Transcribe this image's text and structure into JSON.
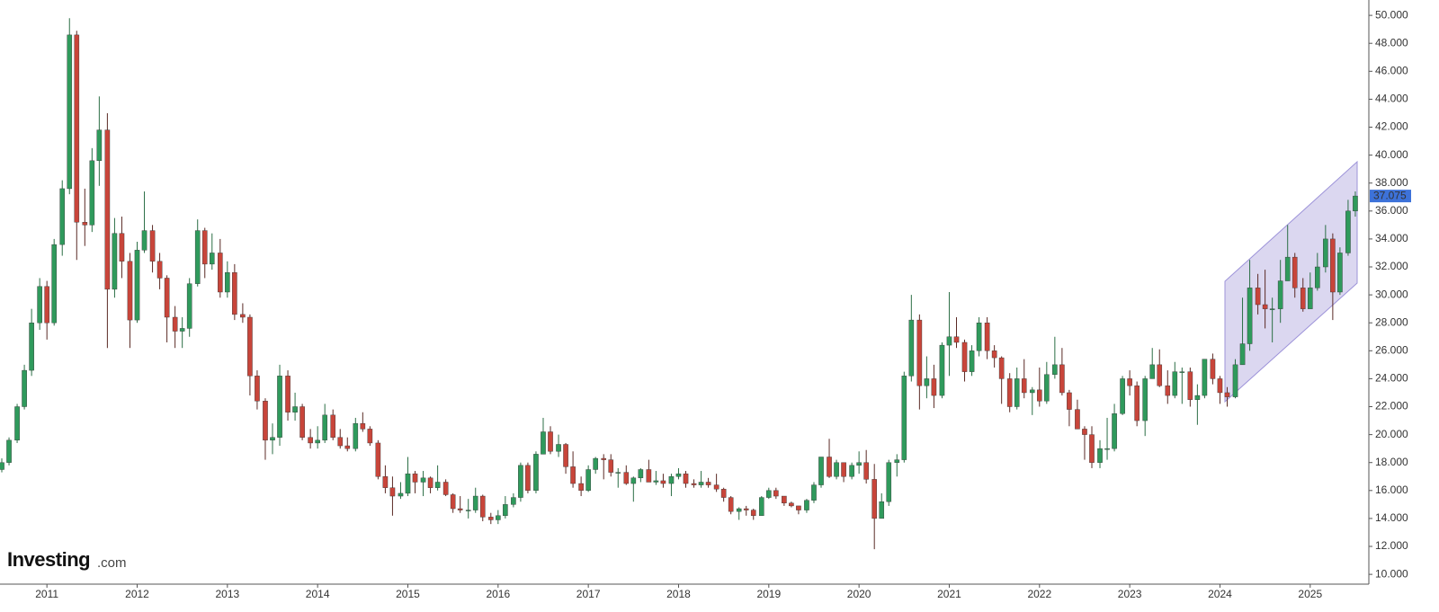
{
  "chart_data": {
    "type": "candlestick",
    "logo": {
      "brand": "Investing",
      "suffix": ".com"
    },
    "up_color": "#2f9a5c",
    "down_color": "#c8453a",
    "last_price": 37.075,
    "xlim": [
      2010.48,
      2025.65
    ],
    "xticks": [
      2011,
      2012,
      2013,
      2014,
      2015,
      2016,
      2017,
      2018,
      2019,
      2020,
      2021,
      2022,
      2023,
      2024,
      2025
    ],
    "ylim": [
      9.3,
      51.1
    ],
    "yticks": [
      {
        "value": 10,
        "label": "10.000"
      },
      {
        "value": 12,
        "label": "12.000"
      },
      {
        "value": 14,
        "label": "14.000"
      },
      {
        "value": 16,
        "label": "16.000"
      },
      {
        "value": 18,
        "label": "18.000"
      },
      {
        "value": 20,
        "label": "20.000"
      },
      {
        "value": 22,
        "label": "22.000"
      },
      {
        "value": 24,
        "label": "24.000"
      },
      {
        "value": 26,
        "label": "26.000"
      },
      {
        "value": 28,
        "label": "28.000"
      },
      {
        "value": 30,
        "label": "30.000"
      },
      {
        "value": 32,
        "label": "32.000"
      },
      {
        "value": 34,
        "label": "34.000"
      },
      {
        "value": 36,
        "label": "36.000"
      },
      {
        "value": 38,
        "label": "38.000"
      },
      {
        "value": 40,
        "label": "40.000"
      },
      {
        "value": 42,
        "label": "42.000"
      },
      {
        "value": 44,
        "label": "44.000"
      },
      {
        "value": 46,
        "label": "46.000"
      },
      {
        "value": 48,
        "label": "48.000"
      },
      {
        "value": 50,
        "label": "50.000"
      }
    ],
    "x": [
      2010.5,
      2010.58,
      2010.67,
      2010.75,
      2010.83,
      2010.92,
      2011,
      2011.08,
      2011.17,
      2011.25,
      2011.33,
      2011.42,
      2011.5,
      2011.58,
      2011.67,
      2011.75,
      2011.83,
      2011.92,
      2012,
      2012.08,
      2012.17,
      2012.25,
      2012.33,
      2012.42,
      2012.5,
      2012.58,
      2012.67,
      2012.75,
      2012.83,
      2012.92,
      2013,
      2013.08,
      2013.17,
      2013.25,
      2013.33,
      2013.42,
      2013.5,
      2013.58,
      2013.67,
      2013.75,
      2013.83,
      2013.92,
      2014,
      2014.08,
      2014.17,
      2014.25,
      2014.33,
      2014.42,
      2014.5,
      2014.58,
      2014.67,
      2014.75,
      2014.83,
      2014.92,
      2015,
      2015.08,
      2015.17,
      2015.25,
      2015.33,
      2015.42,
      2015.5,
      2015.58,
      2015.67,
      2015.75,
      2015.83,
      2015.92,
      2016,
      2016.08,
      2016.17,
      2016.25,
      2016.33,
      2016.42,
      2016.5,
      2016.58,
      2016.67,
      2016.75,
      2016.83,
      2016.92,
      2017,
      2017.08,
      2017.17,
      2017.25,
      2017.33,
      2017.42,
      2017.5,
      2017.58,
      2017.67,
      2017.75,
      2017.83,
      2017.92,
      2018,
      2018.08,
      2018.17,
      2018.25,
      2018.33,
      2018.42,
      2018.5,
      2018.58,
      2018.67,
      2018.75,
      2018.83,
      2018.92,
      2019,
      2019.08,
      2019.17,
      2019.25,
      2019.33,
      2019.42,
      2019.5,
      2019.58,
      2019.67,
      2019.75,
      2019.83,
      2019.92,
      2020,
      2020.08,
      2020.17,
      2020.25,
      2020.33,
      2020.42,
      2020.5,
      2020.58,
      2020.67,
      2020.75,
      2020.83,
      2020.92,
      2021,
      2021.08,
      2021.17,
      2021.25,
      2021.33,
      2021.42,
      2021.5,
      2021.58,
      2021.67,
      2021.75,
      2021.83,
      2021.92,
      2022,
      2022.08,
      2022.17,
      2022.25,
      2022.33,
      2022.42,
      2022.5,
      2022.58,
      2022.67,
      2022.75,
      2022.83,
      2022.92,
      2023,
      2023.08,
      2023.17,
      2023.25,
      2023.33,
      2023.42,
      2023.5,
      2023.58,
      2023.67,
      2023.75,
      2023.83,
      2023.92,
      2024,
      2024.08,
      2024.17,
      2024.25,
      2024.33,
      2024.42,
      2024.5,
      2024.58,
      2024.67,
      2024.75,
      2024.83,
      2024.92,
      2025,
      2025.08,
      2025.17,
      2025.25,
      2025.33,
      2025.42,
      2025.5
    ],
    "candles": [
      [
        17.5,
        18.3,
        17.3,
        18.0
      ],
      [
        18.0,
        19.8,
        17.8,
        19.6
      ],
      [
        19.6,
        22.2,
        19.4,
        22.0
      ],
      [
        22.0,
        25.0,
        21.8,
        24.6
      ],
      [
        24.6,
        29.0,
        24.2,
        28.0
      ],
      [
        28.0,
        31.2,
        27.5,
        30.6
      ],
      [
        30.6,
        31.0,
        26.8,
        28.0
      ],
      [
        28.0,
        34.0,
        27.8,
        33.6
      ],
      [
        33.6,
        38.2,
        32.8,
        37.6
      ],
      [
        37.6,
        49.8,
        37.2,
        48.6
      ],
      [
        48.6,
        48.9,
        32.5,
        35.2
      ],
      [
        35.2,
        37.6,
        33.5,
        35.0
      ],
      [
        35.0,
        40.5,
        34.5,
        39.6
      ],
      [
        39.6,
        44.2,
        37.8,
        41.8
      ],
      [
        41.8,
        43.0,
        26.2,
        30.4
      ],
      [
        30.4,
        35.5,
        29.8,
        34.4
      ],
      [
        34.4,
        35.6,
        31.2,
        32.4
      ],
      [
        32.4,
        33.0,
        26.2,
        28.2
      ],
      [
        28.2,
        33.8,
        28.0,
        33.2
      ],
      [
        33.2,
        37.4,
        33.0,
        34.6
      ],
      [
        34.6,
        35.0,
        31.6,
        32.4
      ],
      [
        32.4,
        33.0,
        30.4,
        31.2
      ],
      [
        31.2,
        31.4,
        26.6,
        28.4
      ],
      [
        28.4,
        29.2,
        26.2,
        27.4
      ],
      [
        27.4,
        28.4,
        26.2,
        27.6
      ],
      [
        27.6,
        31.2,
        27.0,
        30.8
      ],
      [
        30.8,
        35.4,
        30.6,
        34.6
      ],
      [
        34.6,
        34.8,
        31.2,
        32.2
      ],
      [
        32.2,
        34.4,
        31.8,
        33.0
      ],
      [
        33.0,
        34.0,
        29.8,
        30.2
      ],
      [
        30.2,
        32.4,
        29.8,
        31.6
      ],
      [
        31.6,
        32.2,
        28.2,
        28.6
      ],
      [
        28.6,
        29.4,
        28.0,
        28.4
      ],
      [
        28.4,
        28.6,
        22.8,
        24.2
      ],
      [
        24.2,
        24.6,
        21.8,
        22.4
      ],
      [
        22.4,
        22.6,
        18.2,
        19.6
      ],
      [
        19.6,
        20.8,
        18.6,
        19.8
      ],
      [
        19.8,
        25.0,
        19.2,
        24.2
      ],
      [
        24.2,
        24.6,
        21.0,
        21.6
      ],
      [
        21.6,
        23.0,
        21.0,
        22.0
      ],
      [
        22.0,
        22.2,
        19.6,
        19.8
      ],
      [
        19.8,
        20.4,
        19.0,
        19.4
      ],
      [
        19.4,
        20.6,
        19.0,
        19.6
      ],
      [
        19.6,
        22.2,
        19.4,
        21.4
      ],
      [
        21.4,
        21.8,
        19.6,
        19.8
      ],
      [
        19.8,
        20.4,
        19.0,
        19.2
      ],
      [
        19.2,
        19.8,
        18.8,
        19.0
      ],
      [
        19.0,
        21.2,
        18.8,
        20.8
      ],
      [
        20.8,
        21.6,
        20.2,
        20.4
      ],
      [
        20.4,
        20.6,
        19.2,
        19.4
      ],
      [
        19.4,
        19.6,
        16.8,
        17.0
      ],
      [
        17.0,
        17.8,
        15.8,
        16.2
      ],
      [
        16.2,
        17.0,
        14.2,
        15.6
      ],
      [
        15.6,
        16.6,
        15.4,
        15.8
      ],
      [
        15.8,
        18.4,
        15.6,
        17.2
      ],
      [
        17.2,
        17.4,
        15.8,
        16.6
      ],
      [
        16.6,
        17.4,
        15.6,
        16.9
      ],
      [
        16.9,
        17.0,
        15.8,
        16.2
      ],
      [
        16.2,
        17.8,
        16.0,
        16.6
      ],
      [
        16.6,
        16.8,
        15.6,
        15.7
      ],
      [
        15.7,
        15.8,
        14.4,
        14.7
      ],
      [
        14.7,
        15.6,
        14.4,
        14.6
      ],
      [
        14.6,
        15.4,
        14.0,
        14.6
      ],
      [
        14.6,
        16.2,
        14.4,
        15.6
      ],
      [
        15.6,
        15.7,
        13.8,
        14.1
      ],
      [
        14.1,
        14.4,
        13.6,
        13.9
      ],
      [
        13.9,
        14.6,
        13.6,
        14.2
      ],
      [
        14.2,
        15.6,
        14.0,
        15.0
      ],
      [
        15.0,
        15.8,
        14.8,
        15.5
      ],
      [
        15.5,
        18.0,
        15.2,
        17.8
      ],
      [
        17.8,
        18.0,
        15.8,
        16.0
      ],
      [
        16.0,
        18.8,
        15.8,
        18.6
      ],
      [
        18.6,
        21.2,
        18.6,
        20.2
      ],
      [
        20.2,
        20.6,
        18.6,
        18.8
      ],
      [
        18.8,
        20.0,
        18.4,
        19.3
      ],
      [
        19.3,
        19.4,
        17.2,
        17.7
      ],
      [
        17.7,
        18.8,
        16.2,
        16.5
      ],
      [
        16.5,
        17.0,
        15.6,
        16.0
      ],
      [
        16.0,
        17.8,
        15.9,
        17.5
      ],
      [
        17.5,
        18.4,
        17.2,
        18.3
      ],
      [
        18.3,
        18.6,
        16.8,
        18.2
      ],
      [
        18.2,
        18.6,
        17.0,
        17.3
      ],
      [
        17.3,
        17.6,
        16.2,
        17.3
      ],
      [
        17.3,
        17.8,
        16.4,
        16.5
      ],
      [
        16.5,
        17.0,
        15.2,
        16.9
      ],
      [
        16.9,
        17.6,
        16.6,
        17.5
      ],
      [
        17.5,
        18.2,
        16.6,
        16.6
      ],
      [
        16.6,
        17.4,
        16.4,
        16.7
      ],
      [
        16.7,
        17.2,
        16.2,
        16.5
      ],
      [
        16.5,
        17.2,
        15.6,
        17.0
      ],
      [
        17.0,
        17.6,
        16.8,
        17.2
      ],
      [
        17.2,
        17.4,
        16.2,
        16.5
      ],
      [
        16.5,
        16.8,
        16.2,
        16.4
      ],
      [
        16.4,
        17.4,
        16.2,
        16.6
      ],
      [
        16.6,
        16.9,
        16.2,
        16.4
      ],
      [
        16.4,
        17.2,
        15.9,
        16.1
      ],
      [
        16.1,
        16.2,
        15.2,
        15.5
      ],
      [
        15.5,
        15.6,
        14.3,
        14.5
      ],
      [
        14.5,
        14.8,
        13.9,
        14.7
      ],
      [
        14.7,
        14.9,
        14.2,
        14.6
      ],
      [
        14.6,
        14.7,
        13.9,
        14.2
      ],
      [
        14.2,
        15.6,
        14.2,
        15.5
      ],
      [
        15.5,
        16.2,
        15.4,
        16.0
      ],
      [
        16.0,
        16.2,
        15.4,
        15.6
      ],
      [
        15.6,
        15.6,
        14.9,
        15.1
      ],
      [
        15.1,
        15.2,
        14.8,
        14.9
      ],
      [
        14.9,
        14.9,
        14.3,
        14.6
      ],
      [
        14.6,
        15.4,
        14.4,
        15.3
      ],
      [
        15.3,
        16.6,
        15.1,
        16.4
      ],
      [
        16.4,
        18.4,
        16.2,
        18.4
      ],
      [
        18.4,
        19.7,
        16.9,
        17.0
      ],
      [
        17.0,
        18.2,
        16.8,
        18.0
      ],
      [
        18.0,
        18.0,
        16.6,
        17.0
      ],
      [
        17.0,
        18.0,
        16.8,
        17.8
      ],
      [
        17.8,
        18.8,
        17.2,
        18.0
      ],
      [
        18.0,
        18.9,
        16.5,
        16.8
      ],
      [
        16.8,
        17.9,
        11.8,
        14.0
      ],
      [
        14.0,
        15.8,
        14.0,
        15.2
      ],
      [
        15.2,
        18.2,
        14.9,
        18.0
      ],
      [
        18.0,
        18.6,
        17.0,
        18.2
      ],
      [
        18.2,
        24.5,
        18.0,
        24.2
      ],
      [
        24.2,
        30.0,
        23.8,
        28.2
      ],
      [
        28.2,
        28.6,
        21.8,
        23.5
      ],
      [
        23.5,
        25.6,
        22.6,
        24.0
      ],
      [
        24.0,
        25.0,
        21.9,
        22.8
      ],
      [
        22.8,
        26.6,
        22.6,
        26.4
      ],
      [
        26.4,
        30.2,
        24.2,
        27.0
      ],
      [
        27.0,
        28.4,
        26.2,
        26.6
      ],
      [
        26.6,
        26.8,
        23.8,
        24.5
      ],
      [
        24.5,
        26.4,
        24.2,
        26.0
      ],
      [
        26.0,
        28.4,
        25.6,
        28.0
      ],
      [
        28.0,
        28.4,
        25.4,
        26.0
      ],
      [
        26.0,
        26.4,
        24.8,
        25.5
      ],
      [
        25.5,
        25.6,
        22.2,
        24.0
      ],
      [
        24.0,
        24.4,
        21.6,
        22.0
      ],
      [
        22.0,
        24.8,
        21.8,
        24.0
      ],
      [
        24.0,
        25.4,
        22.6,
        23.0
      ],
      [
        23.0,
        23.4,
        21.4,
        23.2
      ],
      [
        23.2,
        24.8,
        22.0,
        22.4
      ],
      [
        22.4,
        25.2,
        22.2,
        24.3
      ],
      [
        24.3,
        27.0,
        24.0,
        25.0
      ],
      [
        25.0,
        26.2,
        22.8,
        23.0
      ],
      [
        23.0,
        23.2,
        20.6,
        21.8
      ],
      [
        21.8,
        22.5,
        20.4,
        20.4
      ],
      [
        20.4,
        20.6,
        18.2,
        20.0
      ],
      [
        20.0,
        20.6,
        17.6,
        18.0
      ],
      [
        18.0,
        19.6,
        17.6,
        19.0
      ],
      [
        19.0,
        21.2,
        18.2,
        19.0
      ],
      [
        19.0,
        22.2,
        18.8,
        21.5
      ],
      [
        21.5,
        24.2,
        21.4,
        24.0
      ],
      [
        24.0,
        24.6,
        22.8,
        23.5
      ],
      [
        23.5,
        23.8,
        20.6,
        21.0
      ],
      [
        21.0,
        24.2,
        19.9,
        24.0
      ],
      [
        24.0,
        26.2,
        24.0,
        25.0
      ],
      [
        25.0,
        26.1,
        23.4,
        23.5
      ],
      [
        23.5,
        24.6,
        22.2,
        22.8
      ],
      [
        22.8,
        25.2,
        22.6,
        24.5
      ],
      [
        24.5,
        24.8,
        22.2,
        24.5
      ],
      [
        24.5,
        24.8,
        22.0,
        22.5
      ],
      [
        22.5,
        23.6,
        20.7,
        22.8
      ],
      [
        22.8,
        25.4,
        22.6,
        25.4
      ],
      [
        25.4,
        25.8,
        23.6,
        24.0
      ],
      [
        24.0,
        24.2,
        22.2,
        23.0
      ],
      [
        23.0,
        23.4,
        22.0,
        22.7
      ],
      [
        22.7,
        25.4,
        22.6,
        25.0
      ],
      [
        25.0,
        29.8,
        25.0,
        26.5
      ],
      [
        26.5,
        32.5,
        26.0,
        30.5
      ],
      [
        30.5,
        31.5,
        28.6,
        29.3
      ],
      [
        29.3,
        31.8,
        27.6,
        29.0
      ],
      [
        29.0,
        29.8,
        26.6,
        29.0
      ],
      [
        29.0,
        32.5,
        28.0,
        31.0
      ],
      [
        31.0,
        35.0,
        31.0,
        32.7
      ],
      [
        32.7,
        33.0,
        29.8,
        30.5
      ],
      [
        30.5,
        31.2,
        28.8,
        29.0
      ],
      [
        29.0,
        31.6,
        29.0,
        30.5
      ],
      [
        30.5,
        33.0,
        30.3,
        32.0
      ],
      [
        32.0,
        35.0,
        31.6,
        34.0
      ],
      [
        34.0,
        34.4,
        28.2,
        30.2
      ],
      [
        30.2,
        33.4,
        30.0,
        33.0
      ],
      [
        33.0,
        36.8,
        32.8,
        36.0
      ],
      [
        36.0,
        37.4,
        35.6,
        37.075
      ]
    ]
  }
}
